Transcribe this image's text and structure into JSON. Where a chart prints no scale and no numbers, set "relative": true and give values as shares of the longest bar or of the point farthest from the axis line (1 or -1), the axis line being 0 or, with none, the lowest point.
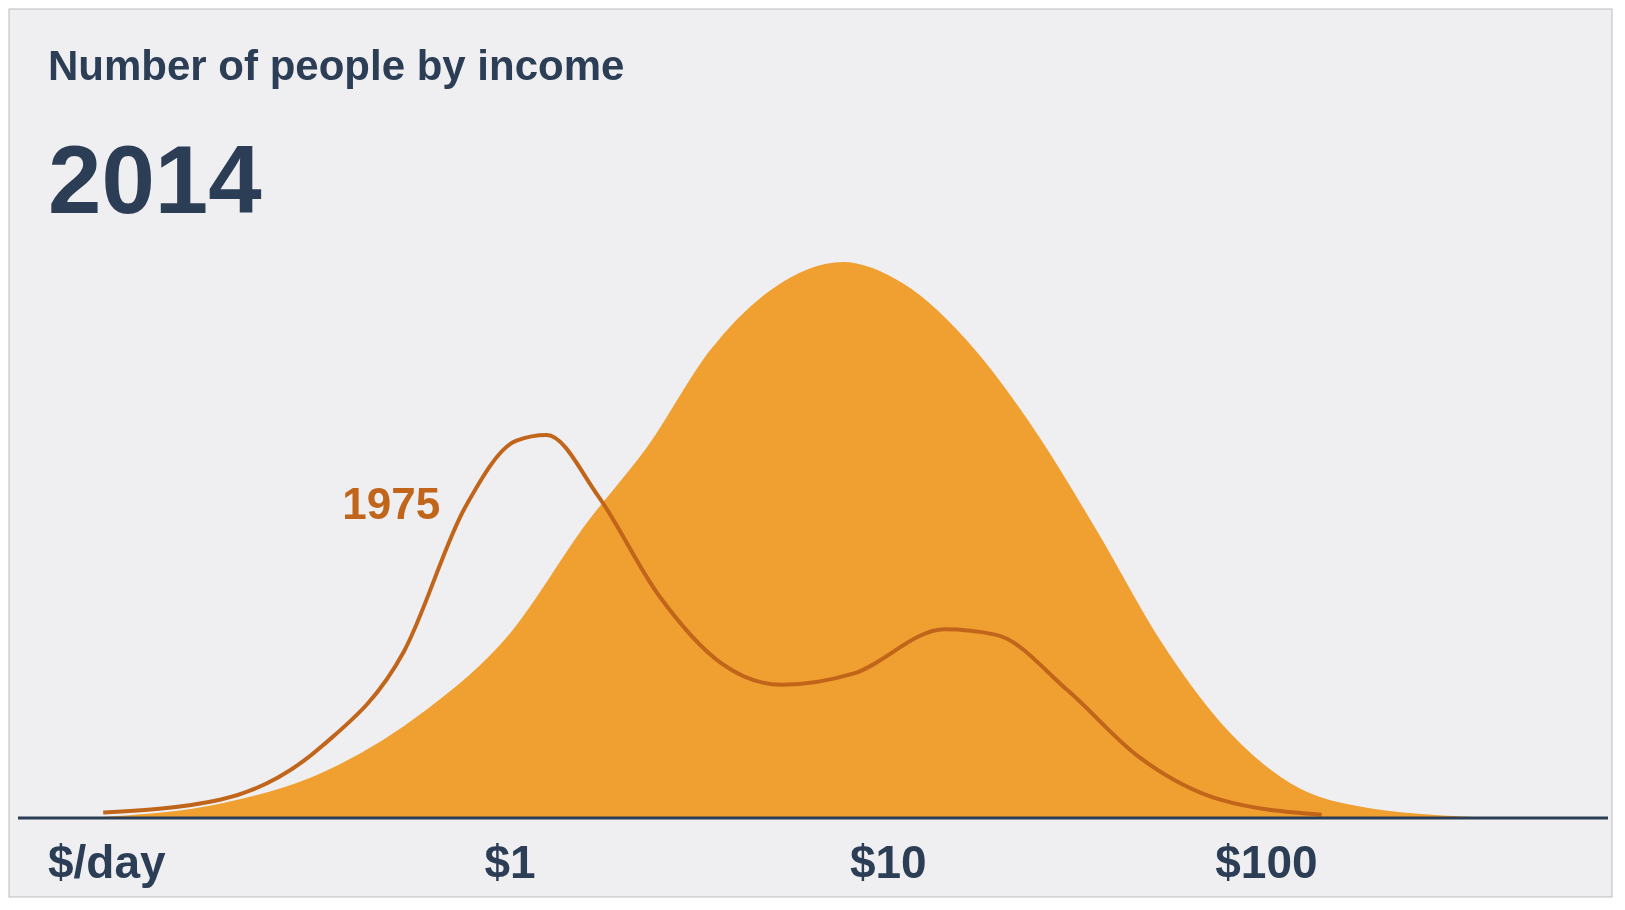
{
  "chart_data": {
    "type": "area",
    "title": "Number of people by income",
    "subtitle": "2014",
    "xlabel": "$/day",
    "relative": true,
    "log": "x",
    "grid": false,
    "legend": false,
    "xlim": [
      0.05,
      800
    ],
    "xticks": [
      {
        "value": 1,
        "label": "$1"
      },
      {
        "value": 10,
        "label": "$10"
      },
      {
        "value": 100,
        "label": "$100"
      }
    ],
    "series": [
      {
        "color": "#f0a030",
        "x": [
          0.084,
          0.171,
          0.319,
          0.593,
          1,
          1.6,
          2.33,
          3.38,
          4.91,
          7.6,
          11,
          17,
          24.7,
          35.9,
          52,
          75.5,
          116,
          191,
          355
        ],
        "values": [
          0,
          0.024,
          0.08,
          0.19,
          0.33,
          0.53,
          0.67,
          0.84,
          0.95,
          1,
          0.96,
          0.84,
          0.69,
          0.51,
          0.32,
          0.17,
          0.06,
          0.015,
          0
        ]
      },
      {
        "type": "line",
        "name": "1975",
        "color": "#c0651a",
        "x": [
          0.084,
          0.171,
          0.319,
          0.524,
          0.761,
          1.04,
          1.25,
          1.71,
          2.48,
          3.6,
          5.23,
          8.07,
          14.1,
          19.3,
          29.8,
          46,
          75.5,
          140
        ],
        "values": [
          0.01,
          0.033,
          0.13,
          0.3,
          0.56,
          0.68,
          0.69,
          0.58,
          0.4,
          0.28,
          0.24,
          0.26,
          0.34,
          0.33,
          0.23,
          0.11,
          0.033,
          0.006
        ]
      }
    ]
  }
}
